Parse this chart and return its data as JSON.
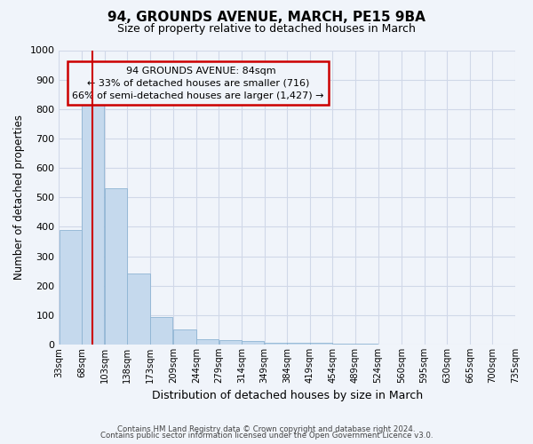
{
  "title": "94, GROUNDS AVENUE, MARCH, PE15 9BA",
  "subtitle": "Size of property relative to detached houses in March",
  "xlabel": "Distribution of detached houses by size in March",
  "ylabel": "Number of detached properties",
  "annotation_line1": "94 GROUNDS AVENUE: 84sqm",
  "annotation_line2": "← 33% of detached houses are smaller (716)",
  "annotation_line3": "66% of semi-detached houses are larger (1,427) →",
  "property_size_sqm": 84,
  "bin_edges": [
    33,
    68,
    103,
    138,
    173,
    209,
    244,
    279,
    314,
    349,
    384,
    419,
    454,
    489,
    524,
    560,
    595,
    630,
    665,
    700,
    735
  ],
  "bar_heights": [
    390,
    830,
    530,
    240,
    93,
    50,
    18,
    15,
    12,
    6,
    5,
    5,
    3,
    2,
    1,
    0,
    0,
    0,
    0,
    0
  ],
  "bar_color": "#c5d9ed",
  "bar_edge_color": "#8eb4d3",
  "vline_color": "#cc0000",
  "vline_x": 84,
  "ylim": [
    0,
    1000
  ],
  "yticks": [
    0,
    100,
    200,
    300,
    400,
    500,
    600,
    700,
    800,
    900,
    1000
  ],
  "annotation_box_color": "#cc0000",
  "footer_line1": "Contains HM Land Registry data © Crown copyright and database right 2024.",
  "footer_line2": "Contains public sector information licensed under the Open Government Licence v3.0.",
  "background_color": "#f0f4fa",
  "title_fontsize": 11,
  "subtitle_fontsize": 9,
  "ylabel_fontsize": 8.5,
  "xlabel_fontsize": 9
}
